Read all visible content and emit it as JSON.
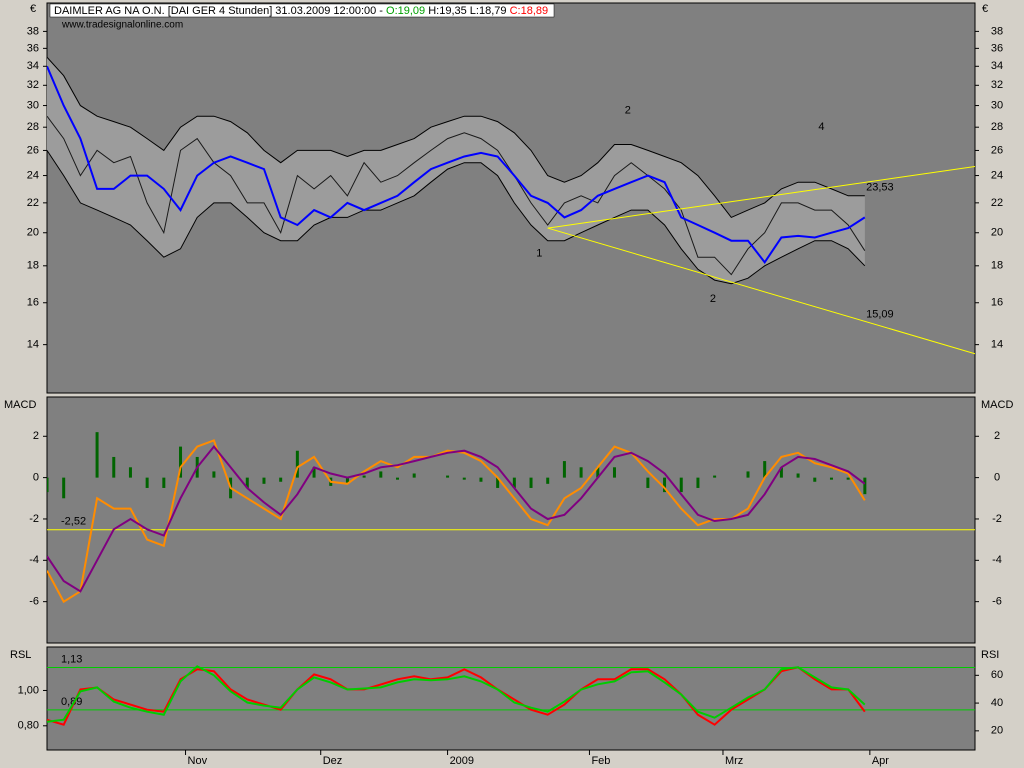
{
  "chart_data": [
    {
      "type": "line",
      "title": "DAIMLER AG NA O.N. [DAI GER  4 Stunden] 31.03.2009 12:00:00 -",
      "title_open": "O:19,09",
      "title_high_low": "H:19,35 L:18,79",
      "title_close": "C:18,89",
      "source": "www.tradesignalonline.com",
      "unit": "€",
      "log_scale": true,
      "x": [
        0,
        1,
        2,
        3,
        4,
        5,
        6,
        7,
        8,
        9,
        10,
        11,
        12,
        13,
        14,
        15,
        16,
        17,
        18,
        19,
        20,
        21,
        22,
        23,
        24,
        25,
        26,
        27,
        28,
        29,
        30,
        31,
        32,
        33,
        34,
        35,
        36,
        37,
        38,
        39,
        40,
        41,
        42,
        43,
        44,
        45,
        46,
        47,
        48,
        49
      ],
      "xlim": [
        0,
        55.6
      ],
      "ylim": [
        12,
        41.6
      ],
      "yticks": [
        14,
        16,
        18,
        20,
        22,
        24,
        26,
        28,
        30,
        32,
        34,
        36,
        38
      ],
      "series": [
        {
          "band": "upper",
          "color": "#000000",
          "values": [
            35,
            33,
            30,
            29,
            28.5,
            28,
            27,
            26,
            28,
            29,
            29,
            28.5,
            27.5,
            26,
            25,
            26,
            26,
            26,
            25.5,
            26,
            26,
            26.5,
            27,
            28,
            28.5,
            29,
            29,
            28.5,
            27.5,
            26,
            24,
            23.5,
            24,
            25,
            26.5,
            26.5,
            26,
            25.5,
            25,
            24,
            22.5,
            21,
            21.5,
            22,
            23,
            23.5,
            23.5,
            23,
            22.5,
            22.5
          ]
        },
        {
          "band": "lower",
          "color": "#000000",
          "values": [
            26,
            24,
            22,
            21.5,
            21,
            20.5,
            19.5,
            18.5,
            19,
            21,
            22,
            22,
            21,
            20,
            19.5,
            19.5,
            20.5,
            21,
            21,
            21.5,
            21.5,
            22,
            22.5,
            23.5,
            24.5,
            25,
            25,
            24,
            22,
            20.5,
            19.5,
            19.5,
            20,
            20.5,
            21,
            21.5,
            21.5,
            20.5,
            19,
            17.8,
            17.2,
            17,
            17.3,
            18,
            18.5,
            19,
            19.5,
            19.5,
            19,
            18
          ]
        },
        {
          "color": "#1a1a1a",
          "values": [
            29,
            27,
            24,
            26,
            25,
            25.5,
            22,
            20,
            26,
            27,
            25,
            24,
            22,
            22,
            20,
            24,
            23,
            24,
            22.5,
            25,
            23.5,
            24,
            25,
            26,
            27,
            27.5,
            27,
            26,
            24,
            22,
            20.5,
            22,
            22.5,
            22,
            24,
            25,
            24,
            23,
            21.5,
            18.5,
            18.5,
            17.5,
            19,
            20,
            22,
            22,
            21.5,
            21.5,
            20.5,
            18.89
          ]
        },
        {
          "color": "#0000ff",
          "width": 2,
          "values": [
            34,
            30,
            27,
            23,
            23,
            24,
            24,
            23,
            21.5,
            24,
            25,
            25.5,
            25,
            24.5,
            21,
            20.5,
            21.5,
            21,
            22,
            21.5,
            22,
            22.5,
            23.5,
            24.5,
            25,
            25.5,
            25.8,
            25.5,
            24,
            22.5,
            22,
            21,
            21.5,
            22.5,
            23,
            23.5,
            24,
            23.5,
            21,
            20.5,
            20,
            19.5,
            19.5,
            18.2,
            19.7,
            19.8,
            19.7,
            20,
            20.3,
            21
          ]
        }
      ],
      "trend_color": "#ffff00",
      "trendlines": [
        {
          "x": [
            30,
            55.6
          ],
          "values": [
            20.3,
            24.7
          ]
        },
        {
          "x": [
            30,
            55.6
          ],
          "values": [
            20.3,
            13.6
          ]
        }
      ],
      "annotations": [
        {
          "text": "1",
          "x": 29.5,
          "y": 18.7
        },
        {
          "text": "2",
          "x": 34.8,
          "y": 29.5
        },
        {
          "text": "2",
          "x": 39.9,
          "y": 16.2
        },
        {
          "text": "4",
          "x": 46.4,
          "y": 28.0
        },
        {
          "text": "23,53",
          "x": 49.9,
          "y": 23.1
        },
        {
          "text": "15,09",
          "x": 49.9,
          "y": 15.4
        }
      ]
    },
    {
      "type": "line",
      "title": "MACD",
      "x": [
        0,
        1,
        2,
        3,
        4,
        5,
        6,
        7,
        8,
        9,
        10,
        11,
        12,
        13,
        14,
        15,
        16,
        17,
        18,
        19,
        20,
        21,
        22,
        23,
        24,
        25,
        26,
        27,
        28,
        29,
        30,
        31,
        32,
        33,
        34,
        35,
        36,
        37,
        38,
        39,
        40,
        41,
        42,
        43,
        44,
        45,
        46,
        47,
        48,
        49
      ],
      "xlim": [
        0,
        55.6
      ],
      "ylim": [
        -8,
        3.9
      ],
      "yticks": [
        2,
        0,
        -2,
        -4,
        -6
      ],
      "series": [
        {
          "type": "bar",
          "color": "#006400",
          "values": [
            -0.7,
            -1,
            0,
            2.2,
            1,
            0.5,
            -0.5,
            -0.5,
            1.5,
            1,
            0.3,
            -1,
            -0.5,
            -0.3,
            -0.2,
            1.3,
            0.5,
            -0.4,
            -0.3,
            0.1,
            0.3,
            -0.1,
            0.2,
            0,
            0.1,
            -0.1,
            -0.2,
            -0.5,
            -0.5,
            -0.5,
            -0.3,
            0.8,
            0.5,
            0.5,
            0.5,
            0,
            -0.5,
            -0.7,
            -0.7,
            -0.5,
            0.1,
            0,
            0.3,
            0.8,
            0.5,
            0.2,
            -0.2,
            -0.1,
            -0.1,
            -0.8
          ]
        },
        {
          "color": "#ff8c00",
          "width": 2,
          "values": [
            -4.5,
            -6,
            -5.5,
            -1,
            -1.5,
            -1.5,
            -3,
            -3.3,
            0.5,
            1.5,
            1.8,
            -0.5,
            -1,
            -1.5,
            -2,
            0.5,
            1,
            -0.2,
            -0.3,
            0.3,
            0.8,
            0.5,
            1,
            1,
            1.3,
            1.2,
            0.8,
            0,
            -1,
            -2,
            -2.3,
            -1,
            -0.5,
            0.5,
            1.5,
            1.2,
            0.3,
            -0.5,
            -1.5,
            -2.3,
            -2,
            -2,
            -1.5,
            0,
            1,
            1.2,
            0.7,
            0.5,
            0.2,
            -1.1
          ]
        },
        {
          "color": "#800080",
          "width": 2,
          "values": [
            -3.8,
            -5,
            -5.5,
            -4,
            -2.5,
            -2,
            -2.5,
            -2.8,
            -1,
            0.5,
            1.5,
            0.5,
            -0.5,
            -1.2,
            -1.8,
            -0.8,
            0.5,
            0.2,
            0,
            0.2,
            0.5,
            0.6,
            0.8,
            1,
            1.2,
            1.3,
            1,
            0.5,
            -0.5,
            -1.5,
            -2,
            -1.8,
            -1,
            0,
            1,
            1.2,
            0.8,
            0.2,
            -0.8,
            -1.8,
            -2.1,
            -2,
            -1.8,
            -0.8,
            0.5,
            1,
            0.9,
            0.6,
            0.3,
            -0.3
          ]
        }
      ],
      "hline_color": "#ffff00",
      "hlines": [
        {
          "value": -2.52,
          "label": "-2,52"
        }
      ]
    },
    {
      "type": "line",
      "title": "RSL",
      "y2_title": "RSI",
      "x": [
        0,
        1,
        2,
        3,
        4,
        5,
        6,
        7,
        8,
        9,
        10,
        11,
        12,
        13,
        14,
        15,
        16,
        17,
        18,
        19,
        20,
        21,
        22,
        23,
        24,
        25,
        26,
        27,
        28,
        29,
        30,
        31,
        32,
        33,
        34,
        35,
        36,
        37,
        38,
        39,
        40,
        41,
        42,
        43,
        44,
        45,
        46,
        47,
        48,
        49
      ],
      "xlim": [
        0,
        55.6
      ],
      "xticks": [
        {
          "value": 8.3,
          "label": "Nov"
        },
        {
          "value": 16.4,
          "label": "Dez"
        },
        {
          "value": 24.0,
          "label": "2009"
        },
        {
          "value": 32.5,
          "label": "Feb"
        },
        {
          "value": 40.5,
          "label": "Mrz"
        },
        {
          "value": 49.3,
          "label": "Apr"
        }
      ],
      "ylim": [
        0.663,
        1.246
      ],
      "yticks": [
        {
          "value": 1,
          "label": "1,00"
        },
        {
          "value": 0.8,
          "label": "0,80"
        }
      ],
      "y2lim": [
        6.2,
        80.4
      ],
      "y2ticks": [
        60,
        40,
        20
      ],
      "series": [
        {
          "color": "#ff0000",
          "width": 2,
          "values": [
            0.834,
            0.806,
            1.006,
            1.017,
            0.949,
            0.92,
            0.891,
            0.88,
            1.063,
            1.12,
            1.109,
            1.006,
            0.949,
            0.92,
            0.891,
            1.006,
            1.091,
            1.063,
            1.006,
            1.006,
            1.034,
            1.063,
            1.08,
            1.063,
            1.074,
            1.12,
            1.074,
            1.006,
            0.949,
            0.891,
            0.863,
            0.92,
            1.006,
            1.063,
            1.063,
            1.12,
            1.12,
            1.063,
            0.977,
            0.863,
            0.806,
            0.891,
            0.949,
            1.006,
            1.109,
            1.131,
            1.063,
            1.006,
            1.006,
            0.88
          ]
        },
        {
          "axis": "y2",
          "color": "#00cc00",
          "width": 2,
          "values": [
            26.5,
            28,
            48.4,
            51.3,
            41.1,
            36.7,
            33.8,
            31.6,
            55.6,
            66.5,
            60,
            48.4,
            40.4,
            38.2,
            36.7,
            49.8,
            58.5,
            54.9,
            49.8,
            50.5,
            51.3,
            54.9,
            57.1,
            56.4,
            57.1,
            59.3,
            55.6,
            49.8,
            40.4,
            36.7,
            33.8,
            41.1,
            49.8,
            53.5,
            55.6,
            62.2,
            62.9,
            54.9,
            46.2,
            33.8,
            29.5,
            36.7,
            44,
            49.8,
            64.4,
            65.8,
            58.5,
            51.3,
            49.8,
            38.9
          ]
        }
      ],
      "hline_color": "#00cc00",
      "hlines": [
        {
          "value": 1.13,
          "label": "1,13"
        },
        {
          "value": 0.89,
          "label": "0,89"
        }
      ]
    }
  ]
}
